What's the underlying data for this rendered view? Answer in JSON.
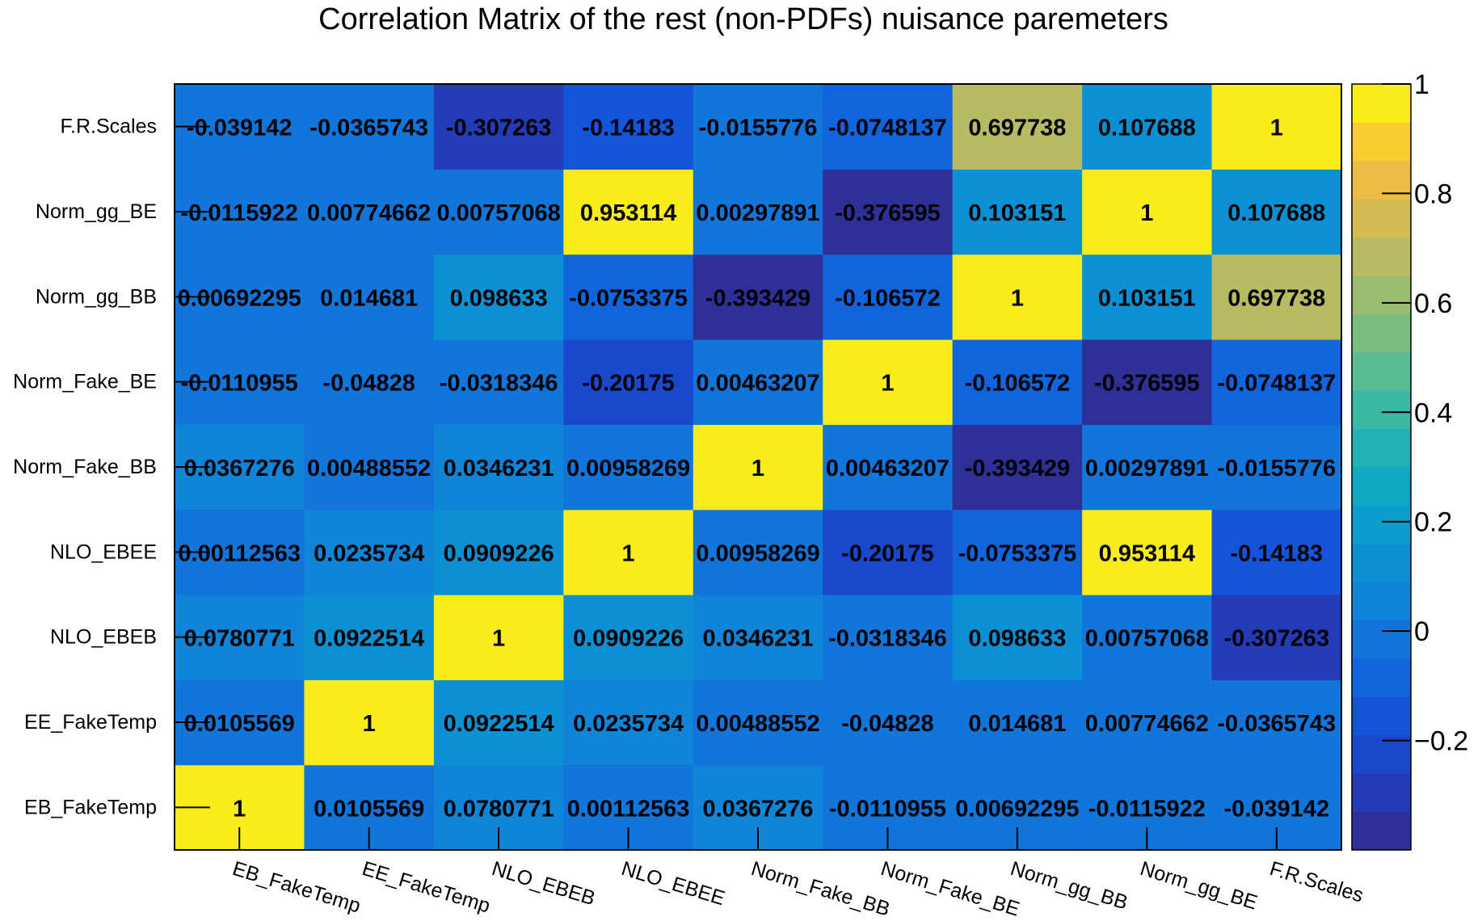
{
  "chart_data": {
    "type": "heatmap",
    "title": "Correlation Matrix of the rest (non-PDFs) nuisance paremeters",
    "xlabel": "",
    "ylabel": "",
    "x_categories": [
      "EB_FakeTemp",
      "EE_FakeTemp",
      "NLO_EBEB",
      "NLO_EBEE",
      "Norm_Fake_BB",
      "Norm_Fake_BE",
      "Norm_gg_BB",
      "Norm_gg_BE",
      "F.R.Scales"
    ],
    "y_categories": [
      "EB_FakeTemp",
      "EE_FakeTemp",
      "NLO_EBEB",
      "NLO_EBEE",
      "Norm_Fake_BB",
      "Norm_Fake_BE",
      "Norm_gg_BB",
      "Norm_gg_BE",
      "F.R.Scales"
    ],
    "values": [
      [
        1,
        0.0105569,
        0.0780771,
        0.00112563,
        0.0367276,
        -0.0110955,
        0.00692295,
        -0.0115922,
        -0.039142
      ],
      [
        0.0105569,
        1,
        0.0922514,
        0.0235734,
        0.00488552,
        -0.04828,
        0.014681,
        0.00774662,
        -0.0365743
      ],
      [
        0.0780771,
        0.0922514,
        1,
        0.0909226,
        0.0346231,
        -0.0318346,
        0.098633,
        0.00757068,
        -0.307263
      ],
      [
        0.00112563,
        0.0235734,
        0.0909226,
        1,
        0.00958269,
        -0.20175,
        -0.0753375,
        0.953114,
        -0.14183
      ],
      [
        0.0367276,
        0.00488552,
        0.0346231,
        0.00958269,
        1,
        0.00463207,
        -0.393429,
        0.00297891,
        -0.0155776
      ],
      [
        -0.0110955,
        -0.04828,
        -0.0318346,
        -0.20175,
        0.00463207,
        1,
        -0.106572,
        -0.376595,
        -0.0748137
      ],
      [
        0.00692295,
        0.014681,
        0.098633,
        -0.0753375,
        -0.393429,
        -0.106572,
        1,
        0.103151,
        0.697738
      ],
      [
        -0.0115922,
        0.00774662,
        0.00757068,
        0.953114,
        0.00297891,
        -0.376595,
        0.103151,
        1,
        0.107688
      ],
      [
        -0.039142,
        -0.0365743,
        -0.307263,
        -0.14183,
        -0.0155776,
        -0.0748137,
        0.697738,
        0.107688,
        1
      ]
    ],
    "zlim": [
      -0.4,
      1
    ],
    "colorbar_ticks": [
      -0.2,
      0,
      0.2,
      0.4,
      0.6,
      0.8,
      1
    ],
    "colorbar_tick_labels": [
      "−0.2",
      "0",
      "0.2",
      "0.4",
      "0.6",
      "0.8",
      "1"
    ],
    "colormap": "parula",
    "grid": false,
    "legend": "colorbar-right"
  }
}
